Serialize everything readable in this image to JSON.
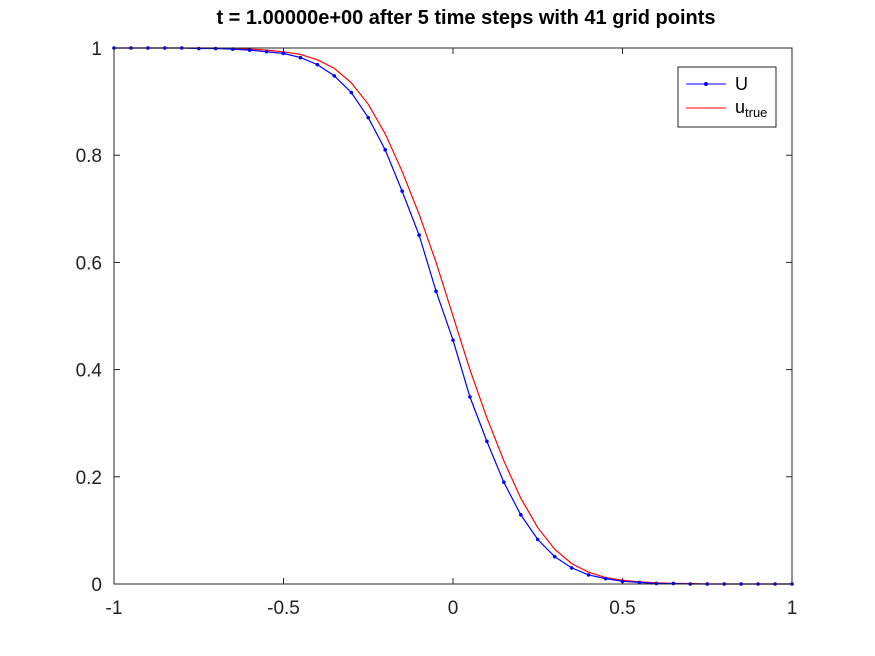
{
  "chart_data": {
    "type": "line",
    "title": "t = 1.00000e+00  after    5 time steps with    41 grid points",
    "xlim": [
      -1,
      1
    ],
    "ylim": [
      0,
      1
    ],
    "xticks": [
      -1,
      -0.5,
      0,
      0.5,
      1
    ],
    "yticks": [
      0,
      0.2,
      0.4,
      0.6,
      0.8,
      1
    ],
    "xtick_labels": [
      "-1",
      "-0.5",
      "0",
      "0.5",
      "1"
    ],
    "ytick_labels": [
      "0",
      "0.2",
      "0.4",
      "0.6",
      "0.8",
      "1"
    ],
    "grid": false,
    "legend_position": "top-right",
    "legend": {
      "u_label": "U",
      "true_label_main": "u",
      "true_label_sub": "true"
    },
    "series": [
      {
        "name": "U",
        "color": "#0000ff",
        "marker": "dot",
        "x": [
          -1,
          -0.95,
          -0.9,
          -0.85,
          -0.8,
          -0.75,
          -0.7,
          -0.65,
          -0.6,
          -0.55,
          -0.5,
          -0.45,
          -0.4,
          -0.35,
          -0.3,
          -0.25,
          -0.2,
          -0.15,
          -0.1,
          -0.05,
          0,
          0.05,
          0.1,
          0.15,
          0.2,
          0.25,
          0.3,
          0.35,
          0.4,
          0.45,
          0.5,
          0.55,
          0.6,
          0.65,
          0.7,
          0.75,
          0.8,
          0.85,
          0.9,
          0.95,
          1
        ],
        "y": [
          1,
          1,
          1,
          1,
          1,
          0.999,
          0.999,
          0.998,
          0.996,
          0.993,
          0.99,
          0.982,
          0.969,
          0.948,
          0.917,
          0.87,
          0.81,
          0.733,
          0.651,
          0.546,
          0.455,
          0.349,
          0.266,
          0.19,
          0.129,
          0.083,
          0.051,
          0.03,
          0.017,
          0.01,
          0.005,
          0.003,
          0.001,
          0.001,
          0,
          0,
          0,
          0,
          0,
          0,
          0
        ]
      },
      {
        "name": "utrue",
        "color": "#ff0000",
        "marker": "none",
        "x": [
          -1,
          -0.95,
          -0.9,
          -0.85,
          -0.8,
          -0.75,
          -0.7,
          -0.65,
          -0.6,
          -0.55,
          -0.5,
          -0.45,
          -0.4,
          -0.35,
          -0.3,
          -0.25,
          -0.2,
          -0.15,
          -0.1,
          -0.05,
          0,
          0.05,
          0.1,
          0.15,
          0.2,
          0.25,
          0.3,
          0.35,
          0.4,
          0.45,
          0.5,
          0.55,
          0.6,
          0.65,
          0.7,
          0.75,
          0.8,
          0.85,
          0.9,
          0.95,
          1
        ],
        "y": [
          1,
          1,
          1,
          1,
          1,
          1,
          1,
          0.999,
          0.998,
          0.996,
          0.993,
          0.988,
          0.978,
          0.962,
          0.935,
          0.895,
          0.84,
          0.77,
          0.69,
          0.6,
          0.5,
          0.4,
          0.31,
          0.23,
          0.16,
          0.105,
          0.065,
          0.038,
          0.022,
          0.012,
          0.007,
          0.004,
          0.002,
          0.001,
          0.001,
          0,
          0,
          0,
          0,
          0,
          0
        ]
      }
    ]
  }
}
